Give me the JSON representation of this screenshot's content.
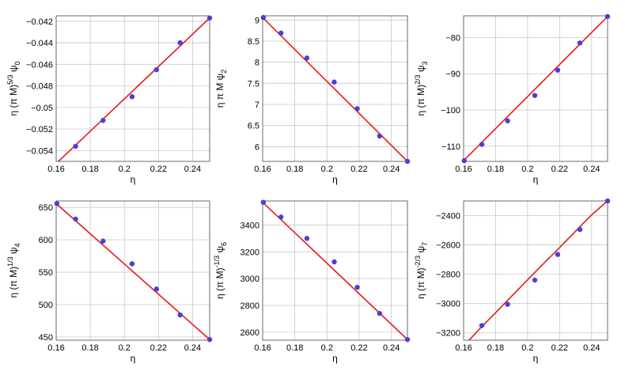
{
  "style": {
    "fit_color": "#e31a1c",
    "point_color": "#4a3fd6",
    "grid": true
  },
  "chart_data": [
    {
      "type": "scatter",
      "xlabel": "η",
      "ylabel": "η (π M)^{5/3} ψ_0",
      "xlim": [
        0.16,
        0.25
      ],
      "ylim": [
        -0.055,
        -0.0415
      ],
      "xticks": [
        0.16,
        0.18,
        0.2,
        0.22,
        0.24
      ],
      "xtick_labels": [
        "0.16",
        "0.18",
        "0.2",
        "0.22",
        "0.24"
      ],
      "yticks": [
        -0.054,
        -0.052,
        -0.05,
        -0.048,
        -0.046,
        -0.044,
        -0.042
      ],
      "ytick_labels": [
        "-0.054",
        "-0.052",
        "-0.05",
        "-0.048",
        "-0.046",
        "-0.044",
        "-0.042"
      ],
      "points": {
        "x": [
          0.1714,
          0.1875,
          0.2045,
          0.2188,
          0.2327,
          0.25
        ],
        "y": [
          -0.0536,
          -0.0512,
          -0.049,
          -0.0465,
          -0.044,
          -0.0417
        ]
      },
      "fit": {
        "x": [
          0.16,
          0.25
        ],
        "y": [
          -0.0552,
          -0.0417
        ]
      }
    },
    {
      "type": "scatter",
      "xlabel": "η",
      "ylabel": "η π M ψ_2",
      "xlim": [
        0.16,
        0.25
      ],
      "ylim": [
        5.65,
        9.1
      ],
      "xticks": [
        0.16,
        0.18,
        0.2,
        0.22,
        0.24
      ],
      "xtick_labels": [
        "0.16",
        "0.18",
        "0.2",
        "0.22",
        "0.24"
      ],
      "yticks": [
        6,
        6.5,
        7,
        7.5,
        8,
        8.5,
        9
      ],
      "ytick_labels": [
        "6",
        "6.5",
        "7",
        "7.5",
        "8",
        "8.5",
        "9"
      ],
      "points": {
        "x": [
          0.1604,
          0.1714,
          0.1875,
          0.2045,
          0.2188,
          0.2327,
          0.25
        ],
        "y": [
          9.06,
          8.69,
          8.1,
          7.53,
          6.9,
          6.25,
          5.65
        ]
      },
      "fit": {
        "x": [
          0.16,
          0.25
        ],
        "y": [
          9.06,
          5.65
        ]
      }
    },
    {
      "type": "scatter",
      "xlabel": "η",
      "ylabel": "η (π M)^{2/3} ψ_3",
      "xlim": [
        0.16,
        0.25
      ],
      "ylim": [
        -114.2,
        -74
      ],
      "xticks": [
        0.16,
        0.18,
        0.2,
        0.22,
        0.24
      ],
      "xtick_labels": [
        "0.16",
        "0.18",
        "0.2",
        "0.22",
        "0.24"
      ],
      "yticks": [
        -110,
        -100,
        -90,
        -80
      ],
      "ytick_labels": [
        "-110",
        "-100",
        "-90",
        "-80"
      ],
      "points": {
        "x": [
          0.1604,
          0.1714,
          0.1875,
          0.2045,
          0.2188,
          0.2327,
          0.25
        ],
        "y": [
          -114,
          -109.5,
          -103,
          -96,
          -89,
          -81.5,
          -74.2
        ]
      },
      "fit": {
        "x": [
          0.16,
          0.25
        ],
        "y": [
          -114,
          -74.2
        ]
      }
    },
    {
      "type": "scatter",
      "xlabel": "η",
      "ylabel": "η (π M)^{1/3} ψ_4",
      "xlim": [
        0.16,
        0.25
      ],
      "ylim": [
        445,
        660
      ],
      "xticks": [
        0.16,
        0.18,
        0.2,
        0.22,
        0.24
      ],
      "xtick_labels": [
        "0.16",
        "0.18",
        "0.2",
        "0.22",
        "0.24"
      ],
      "yticks": [
        450,
        500,
        550,
        600,
        650
      ],
      "ytick_labels": [
        "450",
        "500",
        "550",
        "600",
        "650"
      ],
      "points": {
        "x": [
          0.1604,
          0.1714,
          0.1875,
          0.2045,
          0.2188,
          0.2327,
          0.25
        ],
        "y": [
          656,
          632,
          598,
          563,
          524,
          484,
          446
        ]
      },
      "fit": {
        "x": [
          0.16,
          0.25
        ],
        "y": [
          656,
          446
        ]
      }
    },
    {
      "type": "scatter",
      "xlabel": "η",
      "ylabel": "η (π M)^{-1/3} ψ_6",
      "xlim": [
        0.16,
        0.25
      ],
      "ylim": [
        2540,
        3580
      ],
      "xticks": [
        0.16,
        0.18,
        0.2,
        0.22,
        0.24
      ],
      "xtick_labels": [
        "0.16",
        "0.18",
        "0.2",
        "0.22",
        "0.24"
      ],
      "yticks": [
        2600,
        2800,
        3000,
        3200,
        3400
      ],
      "ytick_labels": [
        "2600",
        "2800",
        "3000",
        "3200",
        "3400"
      ],
      "points": {
        "x": [
          0.1604,
          0.1714,
          0.1875,
          0.2045,
          0.2188,
          0.2327,
          0.25
        ],
        "y": [
          3570,
          3460,
          3300,
          3125,
          2935,
          2740,
          2545
        ]
      },
      "fit": {
        "x": [
          0.16,
          0.25
        ],
        "y": [
          3570,
          2545
        ]
      }
    },
    {
      "type": "scatter",
      "xlabel": "η",
      "ylabel": "η (π M)^{-2/3} ψ_7",
      "xlim": [
        0.16,
        0.25
      ],
      "ylim": [
        -3250,
        -2300
      ],
      "xticks": [
        0.16,
        0.18,
        0.2,
        0.22,
        0.24
      ],
      "xtick_labels": [
        "0.16",
        "0.18",
        "0.2",
        "0.22",
        "0.24"
      ],
      "yticks": [
        -3200,
        -3000,
        -2800,
        -2600,
        -2400
      ],
      "ytick_labels": [
        "-3200",
        "-3000",
        "-2800",
        "-2600",
        "-2400"
      ],
      "points": {
        "x": [
          0.1714,
          0.1875,
          0.2045,
          0.2188,
          0.2327,
          0.25
        ],
        "y": [
          -3150,
          -3005,
          -2840,
          -2665,
          -2495,
          -2300
        ]
      },
      "fit": {
        "x": [
          0.16,
          0.17,
          0.18,
          0.19,
          0.2,
          0.21,
          0.22,
          0.23,
          0.24,
          0.25
        ],
        "y": [
          -3290,
          -3173,
          -3063,
          -2950,
          -2838,
          -2727,
          -2618,
          -2506,
          -2395,
          -2300
        ]
      }
    }
  ]
}
